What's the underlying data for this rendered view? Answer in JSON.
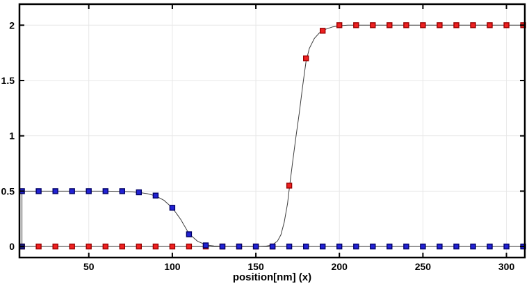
{
  "chart_data": {
    "type": "line",
    "title": "",
    "xlabel": "position[nm] (x)",
    "ylabel": "",
    "xlim": [
      8.5,
      311
    ],
    "ylim": [
      -0.1,
      2.19
    ],
    "xticks": [
      50,
      100,
      150,
      200,
      250,
      300
    ],
    "xtick_labels": [
      "50",
      "100",
      "150",
      "200",
      "250",
      "300"
    ],
    "yticks": [
      0,
      0.5,
      1,
      1.5,
      2
    ],
    "ytick_labels": [
      "0",
      "0.5",
      "1",
      "1.5",
      "2"
    ],
    "grid": true,
    "legend": "none",
    "axis_color": "#000000",
    "grid_color": "#e7e7e7",
    "line_color": "#3c3c3c",
    "x_step_nm": 10,
    "series": [
      {
        "name": "red-profile",
        "marker": "square",
        "marker_fill": "#ee2020",
        "marker_edge": "#990000",
        "x": [
          10,
          20,
          30,
          40,
          50,
          60,
          70,
          80,
          90,
          100,
          110,
          120,
          130,
          140,
          150,
          160,
          170,
          180,
          190,
          200,
          210,
          220,
          230,
          240,
          250,
          260,
          270,
          280,
          290,
          300,
          310
        ],
        "y": [
          0,
          0,
          0,
          0,
          0,
          0,
          0,
          0,
          0,
          0,
          0,
          0,
          0,
          0,
          0,
          0,
          0.55,
          1.7,
          1.95,
          2,
          2,
          2,
          2,
          2,
          2,
          2,
          2,
          2,
          2,
          2,
          2
        ]
      },
      {
        "name": "blue-profile",
        "marker": "square",
        "marker_fill": "#2222d4",
        "marker_edge": "#000066",
        "x": [
          10,
          20,
          30,
          40,
          50,
          60,
          70,
          80,
          90,
          100,
          110,
          120,
          130,
          140,
          150,
          160,
          170,
          180,
          190,
          200,
          210,
          220,
          230,
          240,
          250,
          260,
          270,
          280,
          290,
          300,
          310
        ],
        "y": [
          0.5,
          0.5,
          0.5,
          0.5,
          0.5,
          0.5,
          0.5,
          0.49,
          0.46,
          0.35,
          0.11,
          0.01,
          0,
          0,
          0,
          0,
          0,
          0,
          0,
          0,
          0,
          0,
          0,
          0,
          0,
          0,
          0,
          0,
          0,
          0,
          0
        ]
      }
    ],
    "fit_lines": [
      {
        "name": "red-fit-line",
        "color": "#3c3c3c",
        "points": [
          [
            10,
            0
          ],
          [
            150,
            0
          ],
          [
            156,
            0.003
          ],
          [
            160,
            0.015
          ],
          [
            163,
            0.05
          ],
          [
            165,
            0.105
          ],
          [
            167,
            0.22
          ],
          [
            169,
            0.39
          ],
          [
            170,
            0.52
          ],
          [
            172,
            0.76
          ],
          [
            174,
            0.99
          ],
          [
            176,
            1.21
          ],
          [
            178,
            1.45
          ],
          [
            180,
            1.67
          ],
          [
            182,
            1.79
          ],
          [
            185,
            1.88
          ],
          [
            188,
            1.93
          ],
          [
            192,
            1.965
          ],
          [
            196,
            1.985
          ],
          [
            200,
            1.995
          ],
          [
            205,
            2
          ],
          [
            310,
            2
          ]
        ]
      },
      {
        "name": "blue-fit-line",
        "color": "#3c3c3c",
        "points": [
          [
            10,
            0
          ],
          [
            10,
            0.5
          ],
          [
            60,
            0.5
          ],
          [
            70,
            0.498
          ],
          [
            75,
            0.495
          ],
          [
            80,
            0.488
          ],
          [
            85,
            0.477
          ],
          [
            90,
            0.457
          ],
          [
            95,
            0.417
          ],
          [
            100,
            0.35
          ],
          [
            105,
            0.245
          ],
          [
            110,
            0.115
          ],
          [
            115,
            0.048
          ],
          [
            120,
            0.015
          ],
          [
            125,
            0.004
          ],
          [
            130,
            0.001
          ],
          [
            140,
            0
          ],
          [
            310,
            0
          ]
        ]
      }
    ],
    "edge_points": [
      {
        "x": 10,
        "y": 0,
        "fill": "#1f1f7a",
        "edge": "#000050"
      }
    ]
  }
}
